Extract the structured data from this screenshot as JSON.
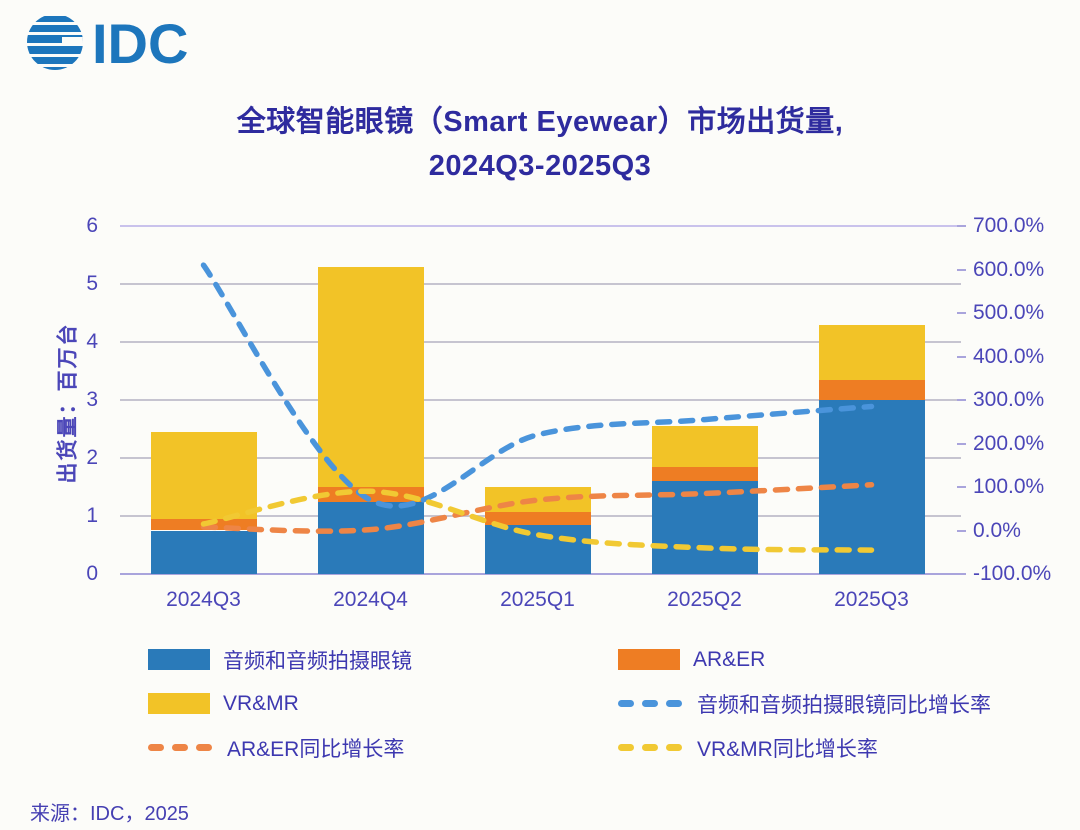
{
  "logo": {
    "text": "IDC"
  },
  "title": {
    "line1": "全球智能眼镜（Smart Eyewear）市场出货量,",
    "line2": "2024Q3-2025Q3"
  },
  "source": {
    "text": "来源：IDC，2025"
  },
  "colors": {
    "bar_audio_blue": "#2A7AB9",
    "bar_arer_orange": "#EE7D23",
    "bar_vrmr_yellow": "#F2C327",
    "line_audio_blue": "#4A94DB",
    "line_arer_orange": "#EE8546",
    "line_vrmr_yellow": "#F1C933",
    "text_purple": "#4B46B8",
    "title_purple": "#2E2B9E",
    "logo_blue": "#1D76BC"
  },
  "chart_data": {
    "type": "combo: stacked bar (left axis) + dashed lines (right axis)",
    "categories": [
      "2024Q3",
      "2024Q4",
      "2025Q1",
      "2025Q2",
      "2025Q3"
    ],
    "bar_series": [
      {
        "name": "音频和音频拍摄眼镜",
        "color": "#2A7AB9",
        "values": [
          0.75,
          1.25,
          0.85,
          1.6,
          3.0
        ]
      },
      {
        "name": "AR&ER",
        "color": "#EE7D23",
        "values": [
          0.2,
          0.25,
          0.22,
          0.25,
          0.35
        ]
      },
      {
        "name": "VR&MR",
        "color": "#F2C327",
        "values": [
          1.5,
          3.8,
          0.43,
          0.7,
          0.95
        ]
      }
    ],
    "bar_totals": [
      2.45,
      5.3,
      1.5,
      2.55,
      4.3
    ],
    "line_series": [
      {
        "name": "音频和音频拍摄眼镜同比增长率",
        "color": "#4A94DB",
        "values_pct": [
          610,
          70,
          220,
          255,
          285
        ]
      },
      {
        "name": "AR&ER同比增长率",
        "color": "#EE8546",
        "values_pct": [
          8,
          2,
          70,
          85,
          105
        ]
      },
      {
        "name": "VR&MR同比增长率",
        "color": "#F1C933",
        "values_pct": [
          15,
          90,
          -10,
          -40,
          -45
        ]
      }
    ],
    "left_axis": {
      "title": "出货量：百万台",
      "ticks": [
        "0",
        "1",
        "2",
        "3",
        "4",
        "5",
        "6"
      ],
      "range": [
        0,
        6
      ],
      "grid": true
    },
    "right_axis": {
      "tick_labels": [
        "700.0%",
        "600.0%",
        "500.0%",
        "400.0%",
        "300.0%",
        "200.0%",
        "100.0%",
        "0.0%",
        "-100.0%"
      ],
      "range_pct": [
        -100,
        700
      ]
    },
    "legend_position": "bottom, two columns",
    "legend_columns": [
      [
        {
          "swatch": "solid",
          "color": "#2A7AB9",
          "label": "音频和音频拍摄眼镜"
        },
        {
          "swatch": "solid",
          "color": "#F2C327",
          "label": "VR&MR"
        },
        {
          "swatch": "dash",
          "color": "#EE8546",
          "label": "AR&ER同比增长率"
        }
      ],
      [
        {
          "swatch": "solid",
          "color": "#EE7D23",
          "label": "AR&ER"
        },
        {
          "swatch": "dash",
          "color": "#4A94DB",
          "label": "音频和音频拍摄眼镜同比增长率"
        },
        {
          "swatch": "dash",
          "color": "#F1C933",
          "label": "VR&MR同比增长率"
        }
      ]
    ]
  }
}
